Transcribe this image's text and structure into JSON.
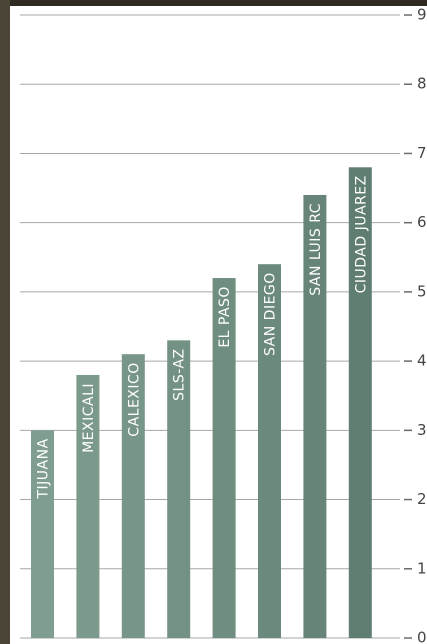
{
  "chart_data": {
    "type": "bar",
    "categories": [
      "TIJUANA",
      "MEXICALI",
      "CALEXICO",
      "SLS-AZ",
      "EL PASO",
      "SAN DIEGO",
      "SAN LUIS RC",
      "CIUDAD JUAREZ"
    ],
    "values": [
      3.0,
      3.8,
      4.1,
      4.3,
      5.2,
      5.4,
      6.4,
      6.8
    ],
    "colors": [
      "#809e90",
      "#7c9a8c",
      "#789688",
      "#749284",
      "#6f8e80",
      "#6b897c",
      "#668477",
      "#5f7d70"
    ],
    "ylim": [
      0,
      9
    ],
    "yticks": [
      0,
      1,
      2,
      3,
      4,
      5,
      6,
      7,
      8,
      9
    ],
    "grid": true
  }
}
